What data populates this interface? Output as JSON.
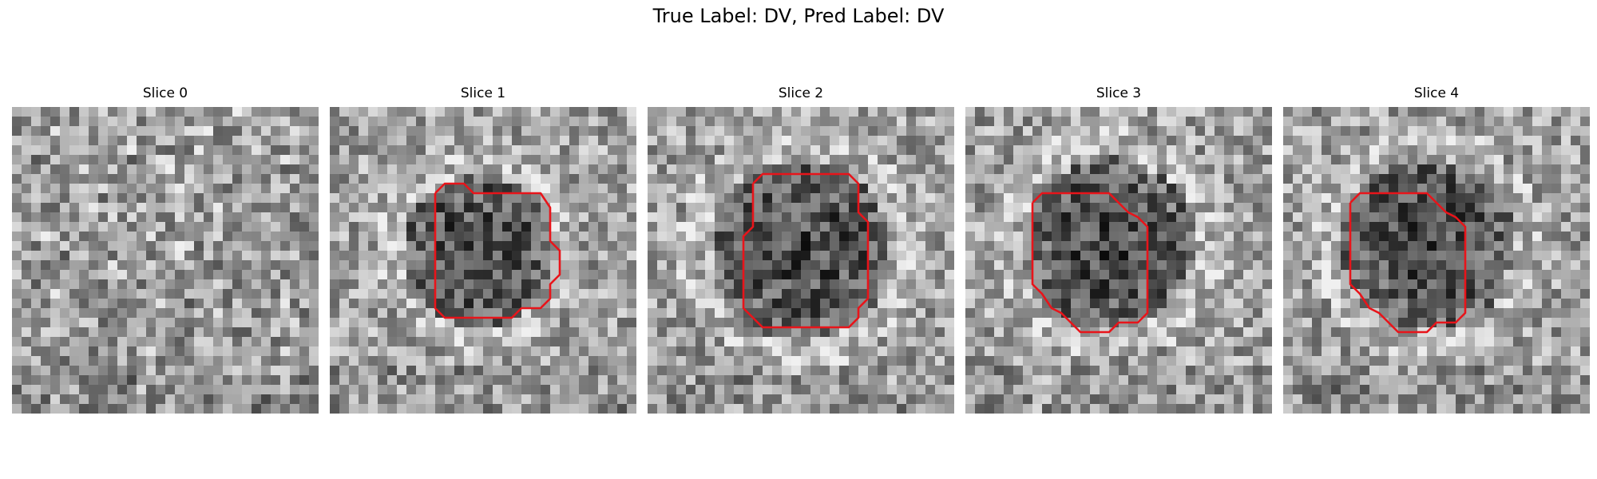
{
  "title": "True Label: DV, Pred Label: DV",
  "colors": {
    "contour": "#e8141a",
    "background": "#ffffff"
  },
  "colormap": "gray",
  "grid_size": 32,
  "panels": [
    {
      "title": "Slice 0",
      "has_contour": false
    },
    {
      "title": "Slice 1",
      "has_contour": true
    },
    {
      "title": "Slice 2",
      "has_contour": true
    },
    {
      "title": "Slice 3",
      "has_contour": true
    },
    {
      "title": "Slice 4",
      "has_contour": true
    }
  ]
}
